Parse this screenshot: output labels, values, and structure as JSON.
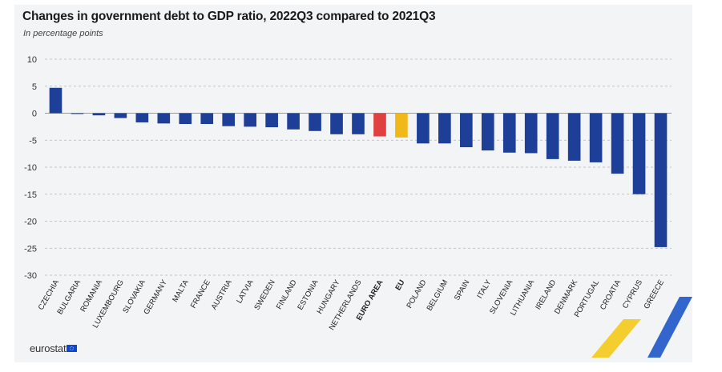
{
  "chart_data": {
    "type": "bar",
    "title": "Changes in government debt to GDP ratio, 2022Q3 compared to 2021Q3",
    "subtitle": "In percentage points",
    "ylim": [
      -30,
      10
    ],
    "yticks": [
      10,
      5,
      0,
      -5,
      -10,
      -15,
      -20,
      -25,
      -30
    ],
    "grid": true,
    "categories": [
      "CZECHIA",
      "BULGARIA",
      "ROMANIA",
      "LUXEMBOURG",
      "SLOVAKIA",
      "GERMANY",
      "MALTA",
      "FRANCE",
      "AUSTRIA",
      "LATVIA",
      "SWEDEN",
      "FINLAND",
      "ESTONIA",
      "HUNGARY",
      "NETHERLANDS",
      "EURO AREA",
      "EU",
      "POLAND",
      "BELGIUM",
      "SPAIN",
      "ITALY",
      "SLOVENIA",
      "LITHUANIA",
      "IRELAND",
      "DENMARK",
      "PORTUGAL",
      "CROATIA",
      "CYPRUS",
      "GREECE"
    ],
    "values": [
      4.7,
      -0.1,
      -0.4,
      -0.9,
      -1.7,
      -1.9,
      -2.0,
      -2.0,
      -2.4,
      -2.5,
      -2.6,
      -3.0,
      -3.3,
      -3.9,
      -3.9,
      -4.3,
      -4.5,
      -5.6,
      -5.6,
      -6.3,
      -6.9,
      -7.3,
      -7.4,
      -8.5,
      -8.8,
      -9.1,
      -11.2,
      -15.0,
      -24.8
    ],
    "highlight": {
      "EURO AREA": "#e04040",
      "EU": "#f0b818"
    },
    "bold_categories": [
      "EURO AREA",
      "EU"
    ]
  },
  "colors": {
    "bar": "#1e3f97",
    "euro_area": "#e04040",
    "eu": "#f0b818"
  },
  "logo": {
    "text": "eurostat",
    "icon": "eu-flag-icon"
  }
}
